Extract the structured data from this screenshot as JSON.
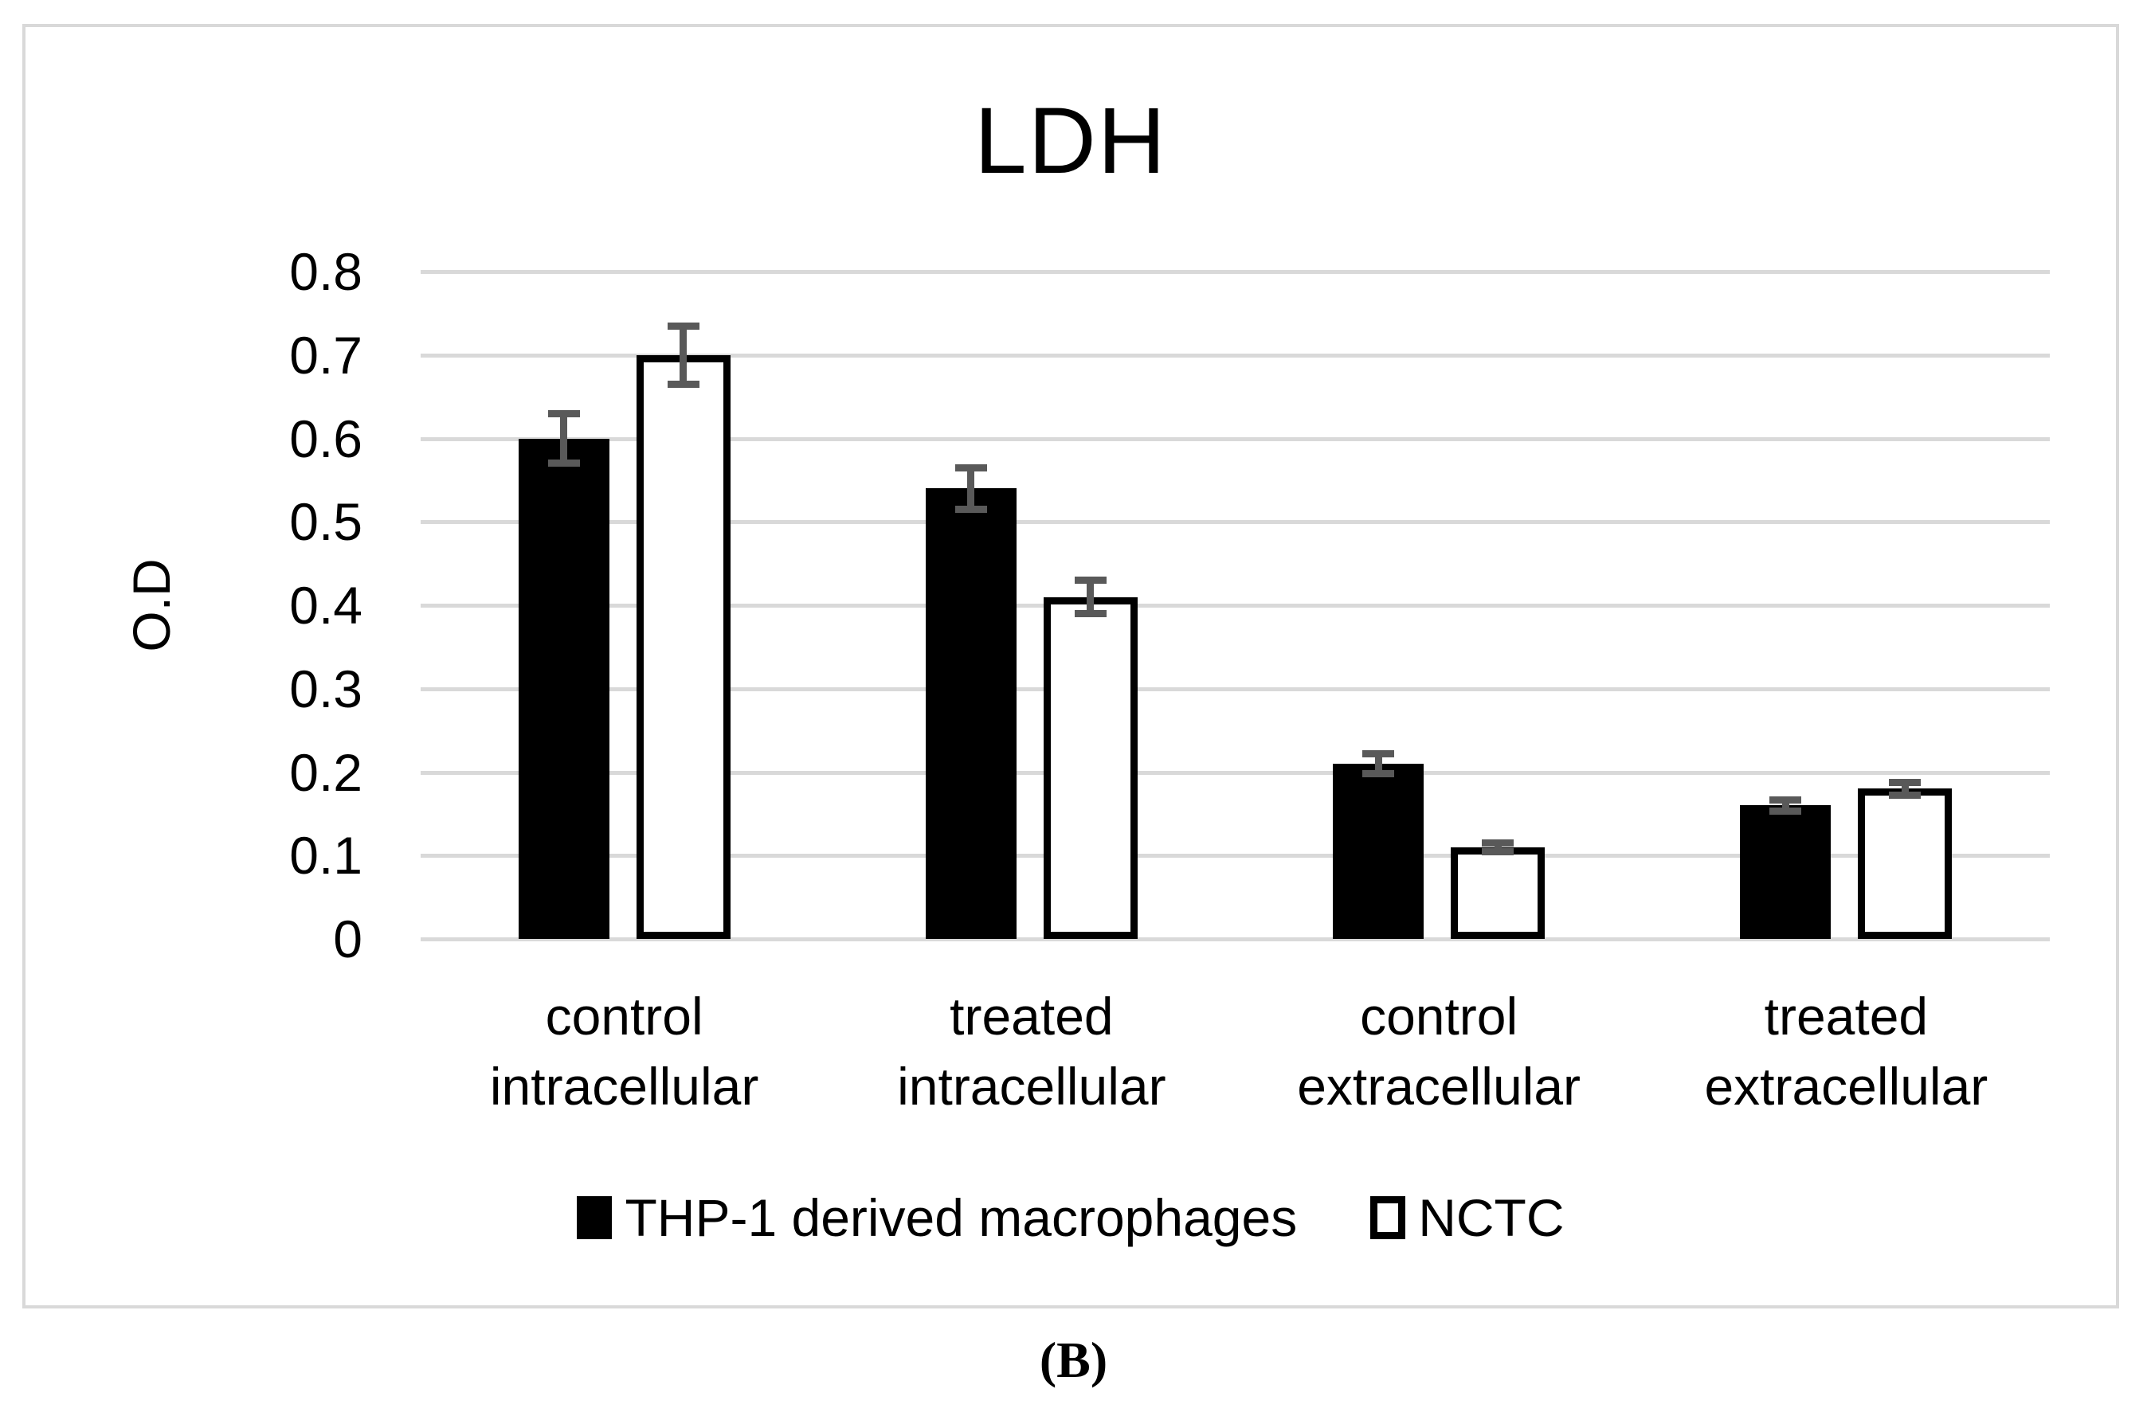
{
  "figure": {
    "panel_label": "(B)"
  },
  "chart_data": {
    "type": "bar",
    "title": "LDH",
    "xlabel": "",
    "ylabel": "O.D",
    "ylim": [
      0,
      0.8
    ],
    "ytick_values": [
      0,
      0.1,
      0.2,
      0.3,
      0.4,
      0.5,
      0.6,
      0.7,
      0.8
    ],
    "ytick_labels": [
      "0",
      "0.1",
      "0.2",
      "0.3",
      "0.4",
      "0.5",
      "0.6",
      "0.7",
      "0.8"
    ],
    "grid": true,
    "legend_position": "bottom",
    "categories": [
      {
        "line1": "control",
        "line2": "intracellular"
      },
      {
        "line1": "treated",
        "line2": "intracellular"
      },
      {
        "line1": "control",
        "line2": "extracellular"
      },
      {
        "line1": "treated",
        "line2": "extracellular"
      }
    ],
    "series": [
      {
        "name": "THP-1 derived macrophages",
        "style": "filled-black",
        "values": [
          0.6,
          0.54,
          0.21,
          0.16
        ],
        "errors": [
          0.03,
          0.025,
          0.012,
          0.007
        ]
      },
      {
        "name": "NCTC",
        "style": "white-outlined",
        "values": [
          0.7,
          0.41,
          0.11,
          0.18
        ],
        "errors": [
          0.035,
          0.02,
          0.005,
          0.008
        ]
      }
    ],
    "colors": {
      "bar_fill_black": "#000000",
      "bar_fill_white": "#ffffff",
      "bar_outline": "#000000",
      "gridline": "#d9d9d9",
      "error_bar": "#595959",
      "frame_border": "#d9d9d9",
      "text": "#000000"
    }
  }
}
